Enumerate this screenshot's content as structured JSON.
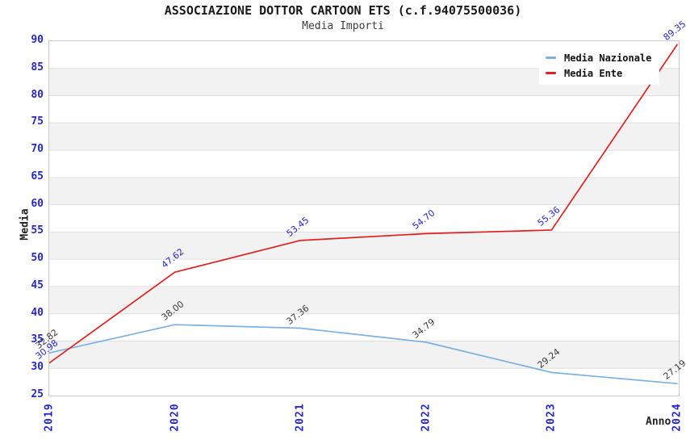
{
  "title": "ASSOCIAZIONE DOTTOR CARTOON ETS (c.f.94075500036)",
  "subtitle": "Media Importi",
  "colors": {
    "tick_label_blue": "#2626cd",
    "nazionale_line": "#7cb1e2",
    "ente_line": "#e0201f",
    "band_gray": "#f2f2f2",
    "gridline": "#e0e0e0",
    "plot_border": "#c9c9c9"
  },
  "chart_data": {
    "type": "line",
    "x": [
      2019,
      2020,
      2021,
      2022,
      2023,
      2024
    ],
    "series": [
      {
        "name": "Media Nazionale",
        "color": "#7cb1e2",
        "label_color": "#3a3a3a",
        "values": [
          32.82,
          38.0,
          37.36,
          34.79,
          29.24,
          27.19
        ]
      },
      {
        "name": "Media Ente",
        "color": "#e0201f",
        "label_color": "#2626cd",
        "values": [
          30.98,
          47.62,
          53.45,
          54.7,
          55.36,
          89.35
        ]
      }
    ],
    "xlabel": "Anno",
    "ylabel": "Media",
    "ylim": [
      25,
      90
    ],
    "ytick_step": 5,
    "grid": "horizontal-bands-alternating",
    "legend_position": "top-right-inside"
  }
}
